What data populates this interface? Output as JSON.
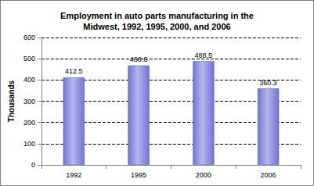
{
  "chart_data": {
    "type": "bar",
    "title": "Employment in auto parts manufacturing in the\nMidwest, 1992, 1995, 2000, and 2006",
    "y_label": "Thousands",
    "categories": [
      "1992",
      "1995",
      "2000",
      "2006"
    ],
    "values": [
      412.5,
      468.6,
      488.5,
      360.3
    ],
    "color": "#7373d4",
    "ylim": [
      0,
      600
    ],
    "yticks": [
      0,
      100,
      200,
      300,
      400,
      500,
      600
    ],
    "grid": true,
    "data_labels": true
  }
}
